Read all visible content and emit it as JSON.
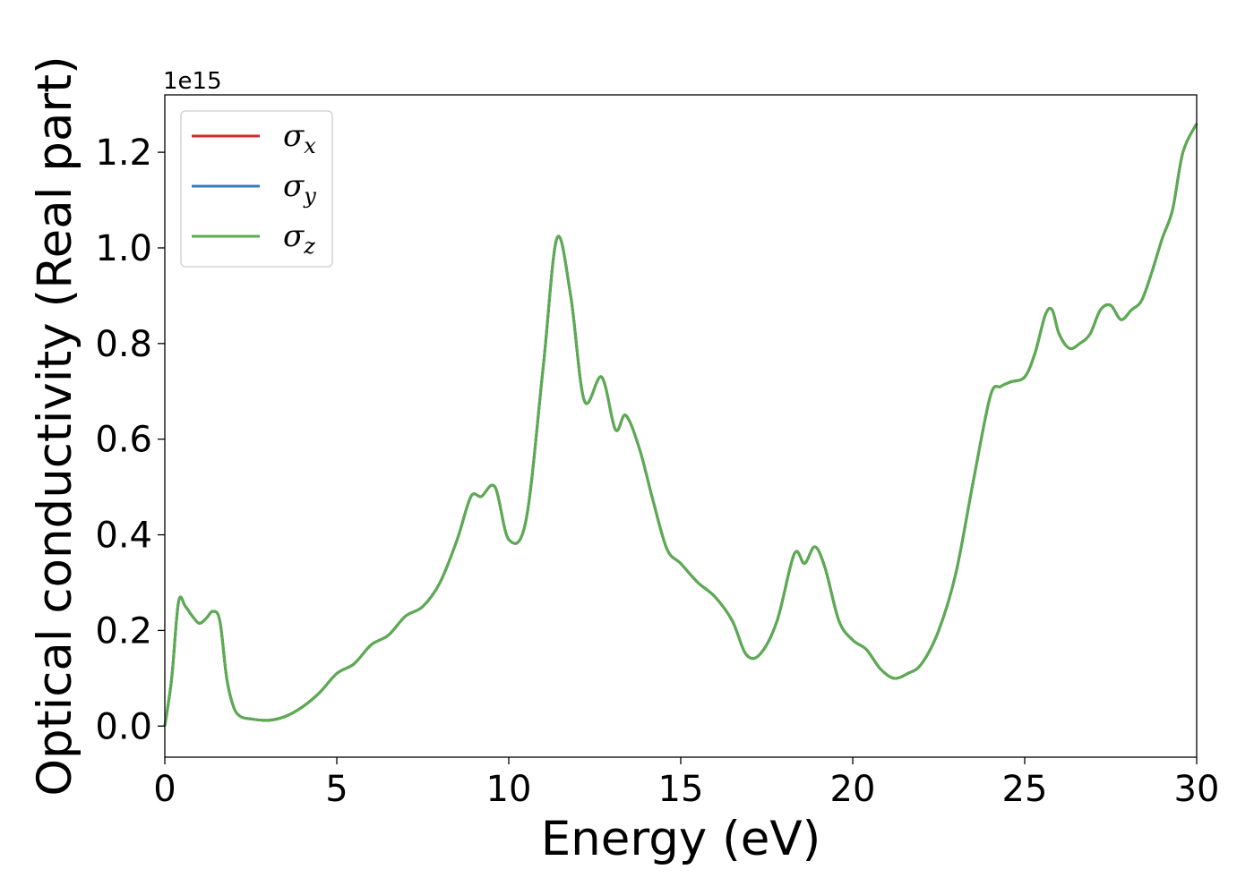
{
  "chart_data": {
    "type": "line",
    "title": "",
    "xlabel": "Energy (eV)",
    "ylabel": "Optical conductivity (Real part)",
    "y_offset_label": "1e15",
    "xlim": [
      0,
      30
    ],
    "ylim": [
      -0.065,
      1.32
    ],
    "x_ticks": [
      0,
      5,
      10,
      15,
      20,
      25,
      30
    ],
    "y_ticks": [
      0.0,
      0.2,
      0.4,
      0.6,
      0.8,
      1.0,
      1.2
    ],
    "x_tick_labels": [
      "0",
      "5",
      "10",
      "15",
      "20",
      "25",
      "30"
    ],
    "y_tick_labels": [
      "0.0",
      "0.2",
      "0.4",
      "0.6",
      "0.8",
      "1.0",
      "1.2"
    ],
    "grid": false,
    "legend_position": "top-left",
    "x": [
      0,
      0.2,
      0.4,
      0.6,
      0.8,
      1.0,
      1.2,
      1.4,
      1.6,
      1.8,
      2.0,
      2.2,
      2.5,
      3.0,
      3.5,
      4.0,
      4.5,
      5.0,
      5.5,
      6.0,
      6.5,
      7.0,
      7.5,
      8.0,
      8.5,
      8.9,
      9.2,
      9.6,
      10.0,
      10.5,
      11.0,
      11.4,
      11.8,
      12.2,
      12.7,
      13.1,
      13.4,
      13.8,
      14.2,
      14.6,
      15.0,
      15.5,
      16.0,
      16.5,
      16.9,
      17.3,
      17.8,
      18.3,
      18.6,
      18.9,
      19.2,
      19.6,
      20.0,
      20.4,
      20.8,
      21.2,
      21.6,
      22.0,
      22.5,
      23.0,
      23.5,
      24.0,
      24.3,
      24.6,
      25.0,
      25.3,
      25.6,
      25.8,
      26.0,
      26.3,
      26.6,
      26.9,
      27.2,
      27.5,
      27.8,
      28.1,
      28.4,
      28.7,
      29.0,
      29.3,
      29.6,
      30.0
    ],
    "series": [
      {
        "name": "σx",
        "name_base": "σ",
        "name_sub": "x",
        "color": "#d62728",
        "values": [
          0.0,
          0.1,
          0.26,
          0.25,
          0.23,
          0.215,
          0.225,
          0.24,
          0.22,
          0.1,
          0.04,
          0.02,
          0.015,
          0.012,
          0.02,
          0.04,
          0.07,
          0.11,
          0.13,
          0.17,
          0.19,
          0.23,
          0.25,
          0.3,
          0.39,
          0.48,
          0.48,
          0.5,
          0.39,
          0.43,
          0.75,
          1.02,
          0.9,
          0.68,
          0.73,
          0.62,
          0.65,
          0.58,
          0.47,
          0.37,
          0.34,
          0.3,
          0.27,
          0.22,
          0.15,
          0.15,
          0.22,
          0.36,
          0.34,
          0.375,
          0.33,
          0.22,
          0.18,
          0.16,
          0.12,
          0.1,
          0.11,
          0.13,
          0.2,
          0.32,
          0.51,
          0.69,
          0.71,
          0.72,
          0.73,
          0.78,
          0.86,
          0.87,
          0.82,
          0.79,
          0.8,
          0.82,
          0.87,
          0.88,
          0.85,
          0.87,
          0.89,
          0.95,
          1.02,
          1.08,
          1.2,
          1.26
        ]
      },
      {
        "name": "σy",
        "name_base": "σ",
        "name_sub": "y",
        "color": "#3a7ab8",
        "values": [
          0.0,
          0.1,
          0.26,
          0.25,
          0.23,
          0.215,
          0.225,
          0.24,
          0.22,
          0.1,
          0.04,
          0.02,
          0.015,
          0.012,
          0.02,
          0.04,
          0.07,
          0.11,
          0.13,
          0.17,
          0.19,
          0.23,
          0.25,
          0.3,
          0.39,
          0.48,
          0.48,
          0.5,
          0.39,
          0.43,
          0.75,
          1.02,
          0.9,
          0.68,
          0.73,
          0.62,
          0.65,
          0.58,
          0.47,
          0.37,
          0.34,
          0.3,
          0.27,
          0.22,
          0.15,
          0.15,
          0.22,
          0.36,
          0.34,
          0.375,
          0.33,
          0.22,
          0.18,
          0.16,
          0.12,
          0.1,
          0.11,
          0.13,
          0.2,
          0.32,
          0.51,
          0.69,
          0.71,
          0.72,
          0.73,
          0.78,
          0.86,
          0.87,
          0.82,
          0.79,
          0.8,
          0.82,
          0.87,
          0.88,
          0.85,
          0.87,
          0.89,
          0.95,
          1.02,
          1.08,
          1.2,
          1.26
        ]
      },
      {
        "name": "σz",
        "name_base": "σ",
        "name_sub": "z",
        "color": "#5aad4e",
        "values": [
          0.0,
          0.1,
          0.26,
          0.25,
          0.23,
          0.215,
          0.225,
          0.24,
          0.22,
          0.1,
          0.04,
          0.02,
          0.015,
          0.012,
          0.02,
          0.04,
          0.07,
          0.11,
          0.13,
          0.17,
          0.19,
          0.23,
          0.25,
          0.3,
          0.39,
          0.48,
          0.48,
          0.5,
          0.39,
          0.43,
          0.75,
          1.02,
          0.9,
          0.68,
          0.73,
          0.62,
          0.65,
          0.58,
          0.47,
          0.37,
          0.34,
          0.3,
          0.27,
          0.22,
          0.15,
          0.15,
          0.22,
          0.36,
          0.34,
          0.375,
          0.33,
          0.22,
          0.18,
          0.16,
          0.12,
          0.1,
          0.11,
          0.13,
          0.2,
          0.32,
          0.51,
          0.69,
          0.71,
          0.72,
          0.73,
          0.78,
          0.86,
          0.87,
          0.82,
          0.79,
          0.8,
          0.82,
          0.87,
          0.88,
          0.85,
          0.87,
          0.89,
          0.95,
          1.02,
          1.08,
          1.2,
          1.26
        ]
      }
    ]
  }
}
